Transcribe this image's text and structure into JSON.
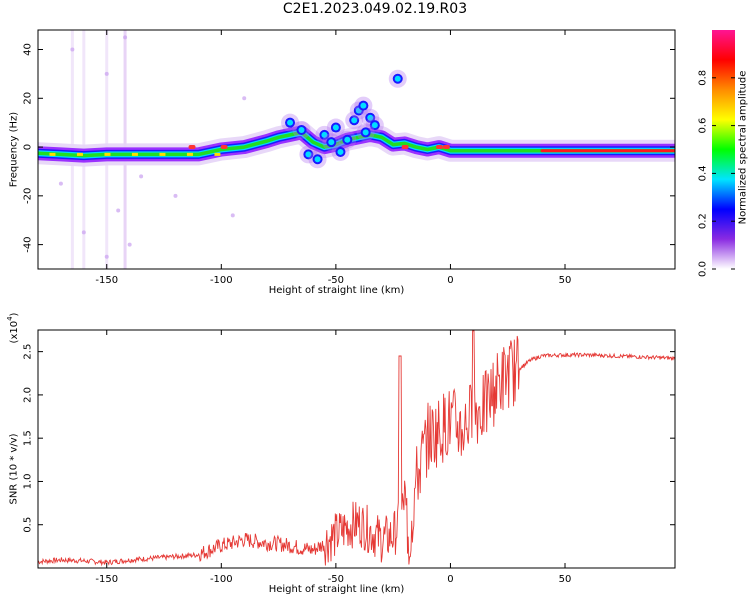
{
  "page_title": "C2E1.2023.049.02.19.R03",
  "chart_data": [
    {
      "type": "heatmap",
      "title": "C2E1.2023.049.02.19.R03",
      "xlabel": "Height of straight line (km)",
      "ylabel": "Frequency (Hz)",
      "xlim": [
        -180,
        98
      ],
      "ylim": [
        -50,
        48
      ],
      "x_ticks": [
        -150,
        -100,
        -50,
        0,
        50
      ],
      "y_ticks": [
        -40,
        -20,
        0,
        20,
        40
      ],
      "x_tick_labels": [
        "-150",
        "-100",
        "-50",
        "0",
        "50"
      ],
      "y_tick_labels": [
        "-40",
        "-20",
        "0",
        "20",
        "40"
      ],
      "colorbar": {
        "label": "Normalized spectral amplitude",
        "range": [
          0,
          1
        ],
        "ticks": [
          0.0,
          0.2,
          0.4,
          0.6,
          0.8
        ],
        "tick_labels": [
          "0.0",
          "0.2",
          "0.4",
          "0.6",
          "0.8"
        ],
        "colormap": [
          "#ffffff",
          "#8a2be2",
          "#0000ff",
          "#00e5ff",
          "#00ff00",
          "#ffff00",
          "#ff8c00",
          "#ff0000",
          "#ff1493"
        ]
      },
      "ridge": {
        "x": [
          -180,
          -170,
          -160,
          -150,
          -140,
          -130,
          -120,
          -110,
          -100,
          -90,
          -80,
          -75,
          -70,
          -65,
          -60,
          -55,
          -50,
          -45,
          -40,
          -35,
          -30,
          -25,
          -20,
          -15,
          -10,
          -5,
          0,
          10,
          20,
          30,
          40,
          50,
          60,
          70,
          80,
          90,
          98
        ],
        "y": [
          -2.5,
          -3,
          -3.5,
          -3,
          -3,
          -3,
          -3,
          -3,
          -1,
          0,
          2.5,
          4,
          5,
          6,
          2,
          0,
          1,
          3,
          4,
          5,
          4,
          1,
          1.5,
          0,
          -1,
          0,
          -1.5,
          -1.5,
          -1.5,
          -1.5,
          -1.5,
          -1.5,
          -1.5,
          -1.5,
          -1.5,
          -1.5,
          -1.5
        ]
      },
      "scatter_blobs": [
        {
          "x": -70,
          "y": 10
        },
        {
          "x": -65,
          "y": 7
        },
        {
          "x": -62,
          "y": -3
        },
        {
          "x": -58,
          "y": -5
        },
        {
          "x": -55,
          "y": 5
        },
        {
          "x": -50,
          "y": 8
        },
        {
          "x": -45,
          "y": 3
        },
        {
          "x": -42,
          "y": 11
        },
        {
          "x": -40,
          "y": 15
        },
        {
          "x": -38,
          "y": 17
        },
        {
          "x": -35,
          "y": 12
        },
        {
          "x": -33,
          "y": 9
        },
        {
          "x": -48,
          "y": -2
        },
        {
          "x": -52,
          "y": 2
        },
        {
          "x": -37,
          "y": 6
        },
        {
          "x": -23,
          "y": 28
        }
      ]
    },
    {
      "type": "line",
      "xlabel": "Height of straight line (km)",
      "ylabel": "SNR (10 * v/v)",
      "y_multiplier": "(x10",
      "y_multiplier_exp": "4",
      "y_multiplier_close": ")",
      "xlim": [
        -180,
        98
      ],
      "ylim": [
        0,
        27500
      ],
      "x_ticks": [
        -150,
        -100,
        -50,
        0,
        50
      ],
      "y_ticks": [
        5000,
        10000,
        15000,
        20000,
        25000
      ],
      "x_tick_labels": [
        "-150",
        "-100",
        "-50",
        "0",
        "50"
      ],
      "y_tick_labels": [
        "0.5",
        "1.0",
        "1.5",
        "2.0",
        "2.5"
      ],
      "series": [
        {
          "color": "#e53935",
          "x": [
            -180,
            -170,
            -160,
            -150,
            -140,
            -130,
            -120,
            -110,
            -105,
            -100,
            -95,
            -90,
            -85,
            -80,
            -75,
            -70,
            -65,
            -60,
            -55,
            -50,
            -45,
            -40,
            -35,
            -30,
            -25,
            -22,
            -20,
            -18,
            -15,
            -10,
            -5,
            0,
            5,
            10,
            15,
            20,
            25,
            30,
            35,
            40,
            50,
            60,
            70,
            80,
            90,
            98
          ],
          "y": [
            700,
            900,
            800,
            600,
            900,
            1100,
            1300,
            1500,
            2000,
            2500,
            2800,
            3200,
            3000,
            2800,
            2700,
            2500,
            2200,
            2000,
            2700,
            3500,
            4500,
            5000,
            4000,
            3000,
            3500,
            5000,
            8000,
            3000,
            10000,
            15000,
            16000,
            17000,
            16000,
            18000,
            18500,
            21000,
            22500,
            23000,
            24000,
            24500,
            24600,
            24600,
            24500,
            24400,
            24300,
            24200
          ]
        }
      ]
    }
  ]
}
